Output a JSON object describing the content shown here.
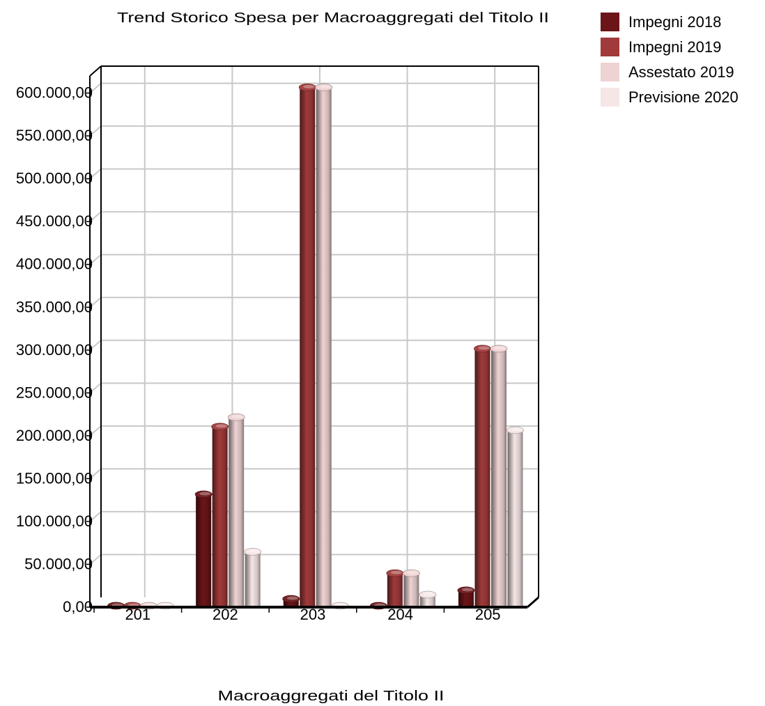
{
  "chart_data": {
    "type": "bar",
    "title": "Trend Storico Spesa per Macroaggregati del Titolo II",
    "xlabel": "Macroaggregati del Titolo II",
    "ylabel": "",
    "categories": [
      "201",
      "202",
      "203",
      "204",
      "205"
    ],
    "ylim": [
      0,
      600000
    ],
    "yticks": [
      0,
      50000,
      100000,
      150000,
      200000,
      250000,
      300000,
      350000,
      400000,
      450000,
      500000,
      550000,
      600000
    ],
    "ytick_labels": [
      "0,00",
      "50.000,00",
      "100.000,00",
      "150.000,00",
      "200.000,00",
      "250.000,00",
      "300.000,00",
      "350.000,00",
      "400.000,00",
      "450.000,00",
      "500.000,00",
      "550.000,00",
      "600.000,00"
    ],
    "grid": true,
    "legend_position": "top-right",
    "series": [
      {
        "name": "Impegni 2018",
        "color": "#6b1518",
        "values": [
          0,
          130000,
          8000,
          0,
          18000
        ]
      },
      {
        "name": "Impegni 2019",
        "color": "#a13a3a",
        "values": [
          0,
          209000,
          605000,
          38000,
          300000
        ]
      },
      {
        "name": "Assestato 2019",
        "color": "#eed3d3",
        "values": [
          0,
          220000,
          605000,
          38000,
          300000
        ]
      },
      {
        "name": "Previsione 2020",
        "color": "#f6e6e6",
        "values": [
          0,
          63000,
          0,
          13000,
          205000
        ]
      }
    ]
  }
}
